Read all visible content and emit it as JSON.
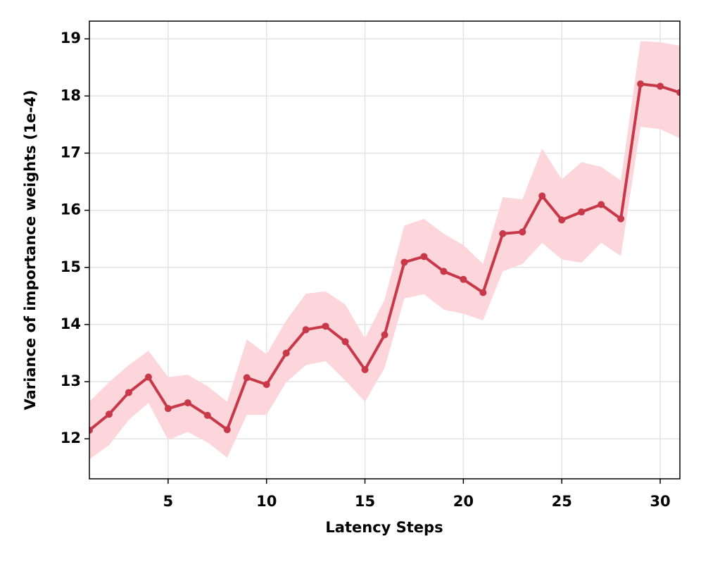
{
  "chart_data": {
    "type": "line",
    "xlabel": "Latency Steps",
    "ylabel": "Variance of importance weights (1e-4)",
    "x": [
      1,
      2,
      3,
      4,
      5,
      6,
      7,
      8,
      9,
      10,
      11,
      12,
      13,
      14,
      15,
      16,
      17,
      18,
      19,
      20,
      21,
      22,
      23,
      24,
      25,
      26,
      27,
      28,
      29,
      30,
      31
    ],
    "values": [
      12.15,
      12.43,
      12.81,
      13.08,
      12.53,
      12.63,
      12.41,
      12.16,
      13.07,
      12.95,
      13.5,
      13.91,
      13.97,
      13.7,
      13.21,
      13.82,
      15.09,
      15.19,
      14.93,
      14.79,
      14.56,
      15.59,
      15.62,
      16.25,
      15.83,
      15.97,
      16.1,
      15.85,
      18.21,
      18.17,
      18.06
    ],
    "band_upper": [
      12.65,
      12.99,
      13.29,
      13.54,
      13.08,
      13.12,
      12.92,
      12.65,
      13.74,
      13.48,
      14.07,
      14.54,
      14.58,
      14.35,
      13.76,
      14.44,
      15.73,
      15.85,
      15.59,
      15.39,
      15.06,
      16.23,
      16.19,
      17.08,
      16.54,
      16.84,
      16.76,
      16.52,
      18.96,
      18.94,
      18.88
    ],
    "band_lower": [
      11.64,
      11.89,
      12.33,
      12.63,
      11.98,
      12.12,
      11.94,
      11.67,
      12.42,
      12.42,
      12.99,
      13.29,
      13.36,
      13.02,
      12.65,
      13.24,
      14.46,
      14.53,
      14.26,
      14.19,
      14.07,
      14.93,
      15.06,
      15.43,
      15.14,
      15.08,
      15.43,
      15.2,
      17.46,
      17.42,
      17.26
    ],
    "color": "#c83848",
    "band_color": "#fcd6da",
    "xlim": [
      1,
      31
    ],
    "ylim": [
      11.3,
      19.31
    ],
    "xticks": [
      5,
      10,
      15,
      20,
      25,
      30
    ],
    "yticks": [
      12,
      13,
      14,
      15,
      16,
      17,
      18,
      19
    ],
    "grid": true
  }
}
